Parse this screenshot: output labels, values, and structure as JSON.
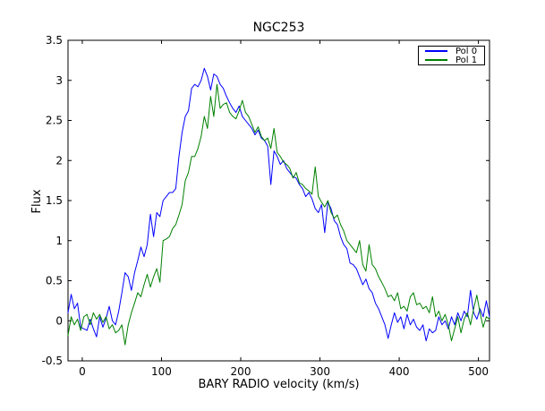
{
  "window": {
    "background_color": "#ffffff",
    "frame_color": "#000000"
  },
  "chart_data": {
    "type": "line",
    "title": "NGC253",
    "xlabel": "BARY RADIO velocity (km/s)",
    "ylabel": "Flux",
    "xlim": [
      -18,
      514
    ],
    "ylim": [
      -0.5,
      3.5
    ],
    "xticks": [
      0,
      100,
      200,
      300,
      400,
      500
    ],
    "xtick_labels": [
      "0",
      "100",
      "200",
      "300",
      "400",
      "500"
    ],
    "yticks": [
      -0.5,
      0,
      0.5,
      1,
      1.5,
      2,
      2.5,
      3,
      3.5
    ],
    "ytick_labels": [
      "-0.5",
      "0",
      "0.5",
      "1",
      "1.5",
      "2",
      "2.5",
      "3",
      "3.5"
    ],
    "grid": false,
    "legend": {
      "position": "upper right",
      "entries": [
        {
          "label": "Pol 0",
          "color": "#0000ff"
        },
        {
          "label": "Pol 1",
          "color": "#008000"
        }
      ]
    },
    "x": [
      -18,
      -14,
      -10,
      -6,
      -2,
      2,
      6,
      10,
      14,
      18,
      22,
      26,
      30,
      34,
      38,
      42,
      46,
      50,
      54,
      58,
      62,
      66,
      70,
      74,
      78,
      82,
      86,
      90,
      94,
      98,
      102,
      106,
      110,
      114,
      118,
      122,
      126,
      130,
      134,
      138,
      142,
      146,
      150,
      154,
      158,
      162,
      166,
      170,
      174,
      178,
      182,
      186,
      190,
      194,
      198,
      202,
      206,
      210,
      214,
      218,
      222,
      226,
      230,
      234,
      238,
      242,
      246,
      250,
      254,
      258,
      262,
      266,
      270,
      274,
      278,
      282,
      286,
      290,
      294,
      298,
      302,
      306,
      310,
      314,
      318,
      322,
      326,
      330,
      334,
      338,
      342,
      346,
      350,
      354,
      358,
      362,
      366,
      370,
      374,
      378,
      382,
      386,
      390,
      394,
      398,
      402,
      406,
      410,
      414,
      418,
      422,
      426,
      430,
      434,
      438,
      442,
      446,
      450,
      454,
      458,
      462,
      466,
      470,
      474,
      478,
      482,
      486,
      490,
      494,
      498,
      502,
      506,
      510,
      514
    ],
    "series": [
      {
        "name": "Pol 0",
        "color": "#0000ff",
        "values": [
          0.1,
          0.33,
          0.15,
          0.22,
          -0.08,
          -0.1,
          -0.12,
          0.02,
          -0.1,
          -0.2,
          0.05,
          -0.08,
          0.03,
          0.18,
          0.0,
          -0.05,
          0.12,
          0.35,
          0.6,
          0.55,
          0.38,
          0.6,
          0.75,
          0.92,
          0.8,
          0.95,
          1.33,
          1.05,
          1.35,
          1.3,
          1.5,
          1.55,
          1.6,
          1.6,
          1.65,
          2.05,
          2.35,
          2.55,
          2.62,
          2.9,
          2.95,
          2.92,
          3.0,
          3.15,
          3.05,
          2.88,
          3.08,
          3.05,
          2.95,
          2.9,
          2.8,
          2.72,
          2.65,
          2.6,
          2.68,
          2.55,
          2.5,
          2.45,
          2.4,
          2.32,
          2.38,
          2.28,
          2.25,
          2.18,
          1.7,
          2.12,
          2.05,
          1.95,
          2.0,
          1.9,
          1.85,
          1.8,
          1.78,
          1.7,
          1.65,
          1.55,
          1.6,
          1.52,
          1.4,
          1.35,
          1.45,
          1.1,
          1.48,
          1.4,
          1.25,
          1.2,
          1.05,
          0.95,
          0.9,
          0.72,
          0.7,
          0.65,
          0.55,
          0.45,
          0.52,
          0.4,
          0.35,
          0.22,
          0.15,
          0.05,
          -0.05,
          -0.22,
          -0.05,
          0.1,
          -0.02,
          0.05,
          -0.1,
          0.08,
          -0.05,
          0.02,
          -0.08,
          -0.12,
          -0.05,
          -0.25,
          -0.1,
          -0.15,
          -0.12,
          0.05,
          -0.05,
          0.0,
          -0.1,
          0.05,
          -0.05,
          0.1,
          0.0,
          0.12,
          0.05,
          0.38,
          0.1,
          0.02,
          0.15,
          0.05,
          0.25,
          0.05
        ]
      },
      {
        "name": "Pol 1",
        "color": "#008000",
        "values": [
          -0.18,
          0.05,
          -0.05,
          0.02,
          -0.12,
          0.05,
          0.08,
          -0.05,
          0.1,
          0.02,
          0.08,
          -0.02,
          0.05,
          -0.1,
          -0.05,
          -0.15,
          -0.12,
          -0.05,
          -0.3,
          -0.05,
          0.1,
          0.22,
          0.35,
          0.3,
          0.45,
          0.58,
          0.42,
          0.55,
          0.65,
          0.48,
          1.0,
          1.02,
          1.05,
          1.15,
          1.2,
          1.32,
          1.45,
          1.75,
          1.85,
          2.05,
          2.05,
          2.15,
          2.3,
          2.55,
          2.4,
          2.8,
          2.55,
          2.95,
          2.65,
          2.7,
          2.72,
          2.6,
          2.55,
          2.52,
          2.62,
          2.75,
          2.6,
          2.55,
          2.45,
          2.35,
          2.42,
          2.3,
          2.25,
          2.28,
          2.15,
          2.4,
          2.1,
          2.05,
          1.98,
          1.95,
          1.9,
          1.78,
          1.85,
          1.72,
          1.7,
          1.65,
          1.62,
          1.58,
          1.92,
          1.55,
          1.48,
          1.42,
          1.5,
          1.35,
          1.28,
          1.32,
          1.2,
          1.12,
          1.0,
          0.95,
          0.9,
          0.85,
          1.0,
          0.7,
          0.62,
          0.95,
          0.7,
          0.65,
          0.55,
          0.48,
          0.4,
          0.3,
          0.32,
          0.25,
          0.35,
          0.15,
          0.18,
          0.12,
          0.3,
          0.35,
          0.2,
          0.22,
          0.15,
          0.18,
          0.1,
          0.3,
          0.05,
          0.12,
          0.0,
          0.08,
          -0.05,
          -0.25,
          -0.1,
          0.05,
          -0.15,
          0.02,
          0.1,
          -0.05,
          0.15,
          0.32,
          0.1,
          -0.08,
          0.05,
          0.02
        ]
      }
    ]
  }
}
